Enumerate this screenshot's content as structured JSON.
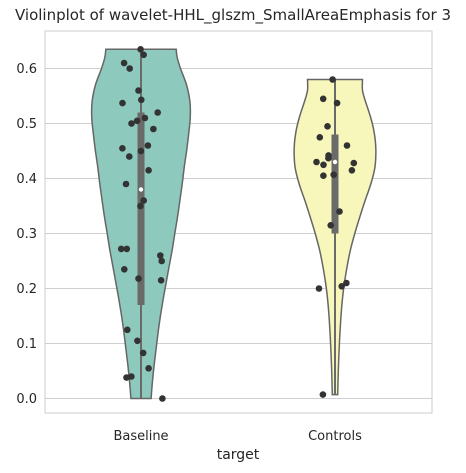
{
  "chart_data": {
    "type": "violin",
    "title": "Violinplot of wavelet-HHL_glszm_SmallAreaEmphasis for 3",
    "xlabel": "target",
    "ylabel": "",
    "ylim": [
      -0.03,
      0.67
    ],
    "yticks": [
      "0.0",
      "0.1",
      "0.2",
      "0.3",
      "0.4",
      "0.5",
      "0.6"
    ],
    "grid": "horizontal",
    "categories": [
      "Baseline",
      "Controls"
    ],
    "series": [
      {
        "category": "Baseline",
        "color": "#8dc9bd",
        "range": [
          0.0,
          0.635
        ],
        "quartiles": [
          0.17,
          0.38,
          0.52
        ],
        "median": 0.38,
        "violin_profile": [
          [
            0.0,
            0.15
          ],
          [
            0.03,
            0.17
          ],
          [
            0.06,
            0.195
          ],
          [
            0.09,
            0.225
          ],
          [
            0.12,
            0.255
          ],
          [
            0.15,
            0.29
          ],
          [
            0.18,
            0.33
          ],
          [
            0.21,
            0.375
          ],
          [
            0.24,
            0.42
          ],
          [
            0.27,
            0.465
          ],
          [
            0.3,
            0.505
          ],
          [
            0.33,
            0.545
          ],
          [
            0.36,
            0.58
          ],
          [
            0.39,
            0.615
          ],
          [
            0.42,
            0.645
          ],
          [
            0.45,
            0.68
          ],
          [
            0.48,
            0.71
          ],
          [
            0.51,
            0.735
          ],
          [
            0.54,
            0.73
          ],
          [
            0.57,
            0.68
          ],
          [
            0.6,
            0.59
          ],
          [
            0.62,
            0.54
          ],
          [
            0.635,
            0.525
          ]
        ],
        "points": [
          0.635,
          0.625,
          0.61,
          0.6,
          0.56,
          0.543,
          0.537,
          0.52,
          0.51,
          0.505,
          0.5,
          0.49,
          0.46,
          0.455,
          0.45,
          0.44,
          0.415,
          0.39,
          0.36,
          0.35,
          0.272,
          0.272,
          0.26,
          0.25,
          0.235,
          0.218,
          0.215,
          0.125,
          0.105,
          0.083,
          0.055,
          0.04,
          0.038,
          0.0
        ]
      },
      {
        "category": "Controls",
        "color": "#f7f7bb",
        "range": [
          0.007,
          0.58
        ],
        "quartiles": [
          0.3,
          0.43,
          0.48
        ],
        "median": 0.43,
        "violin_profile": [
          [
            0.007,
            0.04
          ],
          [
            0.03,
            0.045
          ],
          [
            0.06,
            0.052
          ],
          [
            0.09,
            0.062
          ],
          [
            0.12,
            0.074
          ],
          [
            0.15,
            0.09
          ],
          [
            0.18,
            0.11
          ],
          [
            0.21,
            0.14
          ],
          [
            0.24,
            0.18
          ],
          [
            0.27,
            0.23
          ],
          [
            0.3,
            0.295
          ],
          [
            0.33,
            0.37
          ],
          [
            0.36,
            0.45
          ],
          [
            0.39,
            0.535
          ],
          [
            0.42,
            0.595
          ],
          [
            0.45,
            0.61
          ],
          [
            0.48,
            0.59
          ],
          [
            0.51,
            0.535
          ],
          [
            0.54,
            0.455
          ],
          [
            0.56,
            0.41
          ],
          [
            0.58,
            0.41
          ]
        ],
        "points": [
          0.58,
          0.545,
          0.537,
          0.495,
          0.475,
          0.46,
          0.442,
          0.437,
          0.43,
          0.428,
          0.425,
          0.415,
          0.407,
          0.405,
          0.34,
          0.315,
          0.21,
          0.204,
          0.2,
          0.007
        ]
      }
    ]
  }
}
